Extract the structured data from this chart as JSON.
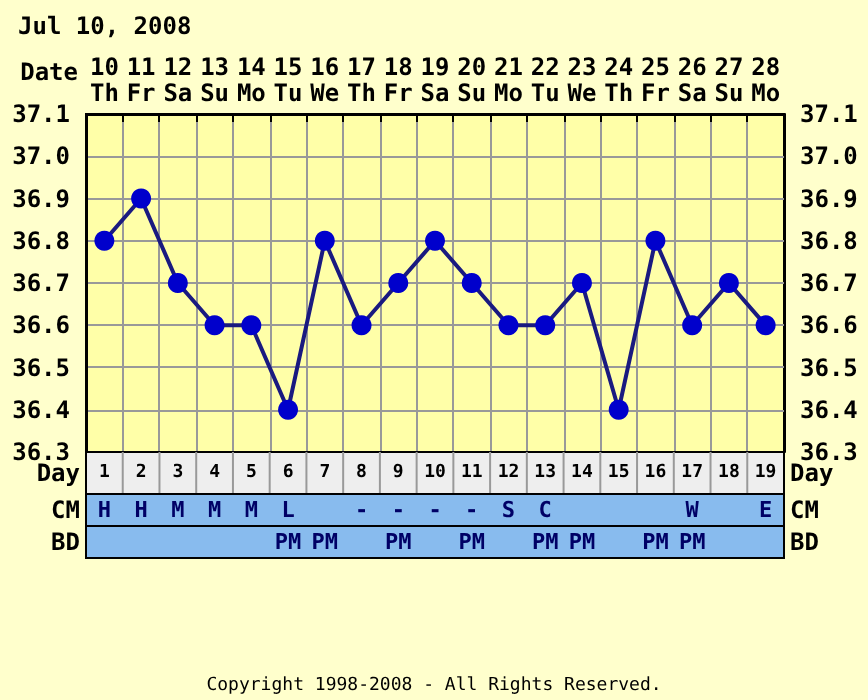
{
  "chart_data": {
    "type": "line",
    "title": "Jul 10, 2008",
    "xlabel": "Date",
    "categories": [
      "10\nTh",
      "11\nFr",
      "12\nSa",
      "13\nSu",
      "14\nMo",
      "15\nTu",
      "16\nWe",
      "17\nTh",
      "18\nFr",
      "19\nSa",
      "20\nSu",
      "21\nMo",
      "22\nTu",
      "23\nWe",
      "24\nTh",
      "25\nFr",
      "26\nSa",
      "27\nSu",
      "28\nMo"
    ],
    "series": [
      {
        "color": "#0000cc",
        "values": [
          36.8,
          36.9,
          36.7,
          36.6,
          36.6,
          36.4,
          36.8,
          36.6,
          36.7,
          36.8,
          36.7,
          36.6,
          36.6,
          36.7,
          36.4,
          36.8,
          36.6,
          36.7,
          36.6
        ]
      }
    ],
    "ylim": [
      36.3,
      37.1
    ],
    "yticks": [
      36.3,
      36.4,
      36.5,
      36.6,
      36.7,
      36.8,
      36.9,
      {
        "value": 37,
        "label": "37.0"
      },
      37.1
    ],
    "y2lim": [
      36.3,
      37.1
    ],
    "y2ticks": [
      36.3,
      36.4,
      36.5,
      36.6,
      36.7,
      36.8,
      36.9,
      {
        "value": 37,
        "label": "37.0"
      },
      37.1
    ],
    "grid": true,
    "marker": "circle",
    "line_style": "solid",
    "annotations": [
      "Day",
      "1 2 3 4 5 6 7 8 9 10 11 12 13 14 15 16 17 18 19",
      "CM",
      "H",
      "H",
      "M",
      "M",
      "M",
      "L",
      null,
      "-",
      "-",
      "-",
      "-",
      "S",
      "C",
      null,
      null,
      null,
      "W",
      null,
      "E",
      "BD",
      null,
      null,
      null,
      null,
      null,
      "PM",
      "PM",
      null,
      "PM",
      null,
      "PM",
      null,
      "PM",
      "PM",
      null,
      "PM",
      "PM",
      null,
      null,
      "Copyright 1998-2008 - All Rights Reserved."
    ]
  }
}
